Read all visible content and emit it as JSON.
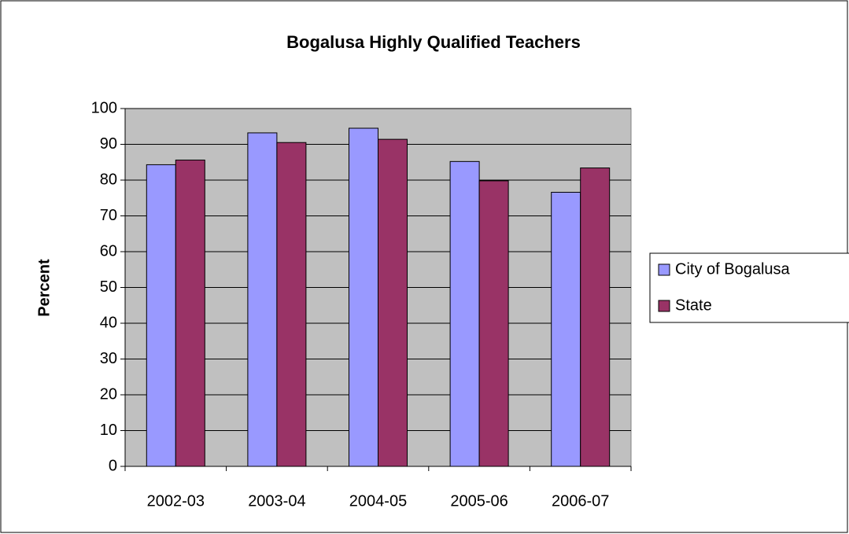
{
  "chart_data": {
    "type": "bar",
    "title": "Bogalusa Highly Qualified Teachers",
    "y_label": "Percent",
    "categories": [
      "2002-03",
      "2003-04",
      "2004-05",
      "2005-06",
      "2006-07"
    ],
    "series": [
      {
        "name": "City of Bogalusa",
        "color": "#9999ff",
        "values": [
          84.3,
          93.2,
          94.5,
          85.2,
          76.6
        ]
      },
      {
        "name": "State",
        "color": "#993366",
        "values": [
          85.6,
          90.5,
          91.4,
          79.8,
          83.4
        ]
      }
    ],
    "ylim": [
      0,
      100
    ],
    "yticks": [
      0,
      10,
      20,
      30,
      40,
      50,
      60,
      70,
      80,
      90,
      100
    ],
    "grid": true,
    "legend": "right",
    "plot_background": "#c0c0c0"
  }
}
